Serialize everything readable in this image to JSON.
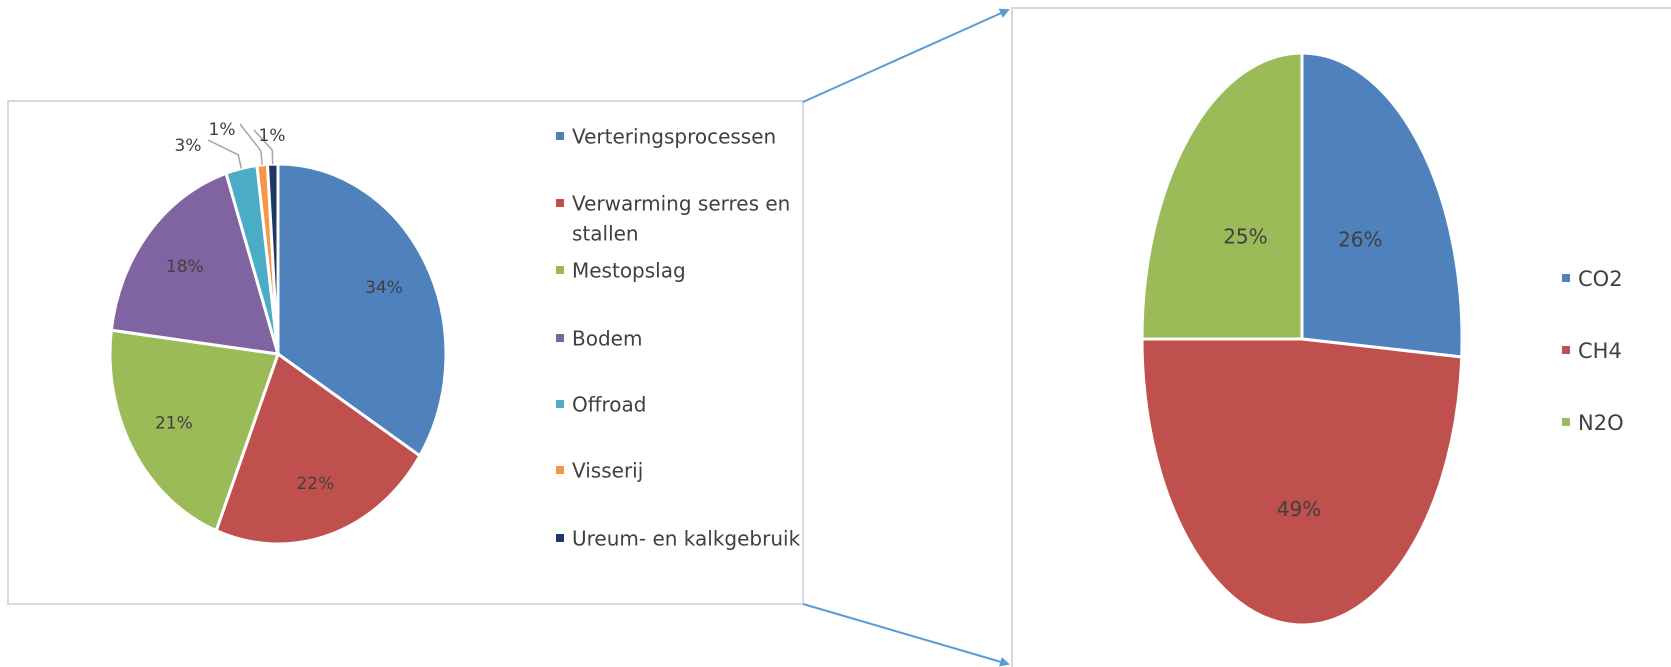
{
  "chart_data": [
    {
      "type": "pie",
      "categories": [
        "Verteringsprocessen",
        "Verwarming serres en stallen",
        "Mestopslag",
        "Bodem",
        "Offroad",
        "Visserij",
        "Ureum- en kalkgebruik"
      ],
      "values": [
        34,
        22,
        21,
        18,
        3,
        1,
        1
      ],
      "data_labels": [
        "34%",
        "22%",
        "21%",
        "18%",
        "3%",
        "1%",
        "1%"
      ],
      "legend": [
        {
          "label_lines": [
            "Verteringsprocessen"
          ],
          "color": "#4f81bd"
        },
        {
          "label_lines": [
            "Verwarming serres en",
            "stallen"
          ],
          "color": "#c0504d"
        },
        {
          "label_lines": [
            "Mestopslag"
          ],
          "color": "#9bbb59"
        },
        {
          "label_lines": [
            "Bodem"
          ],
          "color": "#8064a2"
        },
        {
          "label_lines": [
            "Offroad"
          ],
          "color": "#4bacc6"
        },
        {
          "label_lines": [
            "Visserij"
          ],
          "color": "#f79646"
        },
        {
          "label_lines": [
            "Ureum- en kalkgebruik"
          ],
          "color": "#1f3864"
        }
      ],
      "legend_position": "right"
    },
    {
      "type": "pie",
      "categories": [
        "CO2",
        "CH4",
        "N2O"
      ],
      "values": [
        26,
        49,
        25
      ],
      "data_labels": [
        "26%",
        "49%",
        "25%"
      ],
      "legend": [
        {
          "label_lines": [
            "CO2"
          ],
          "color": "#4f81bd"
        },
        {
          "label_lines": [
            "CH4"
          ],
          "color": "#c0504d"
        },
        {
          "label_lines": [
            "N2O"
          ],
          "color": "#9bbb59"
        }
      ],
      "legend_position": "right"
    }
  ],
  "connector_color": "#5b9bd5"
}
